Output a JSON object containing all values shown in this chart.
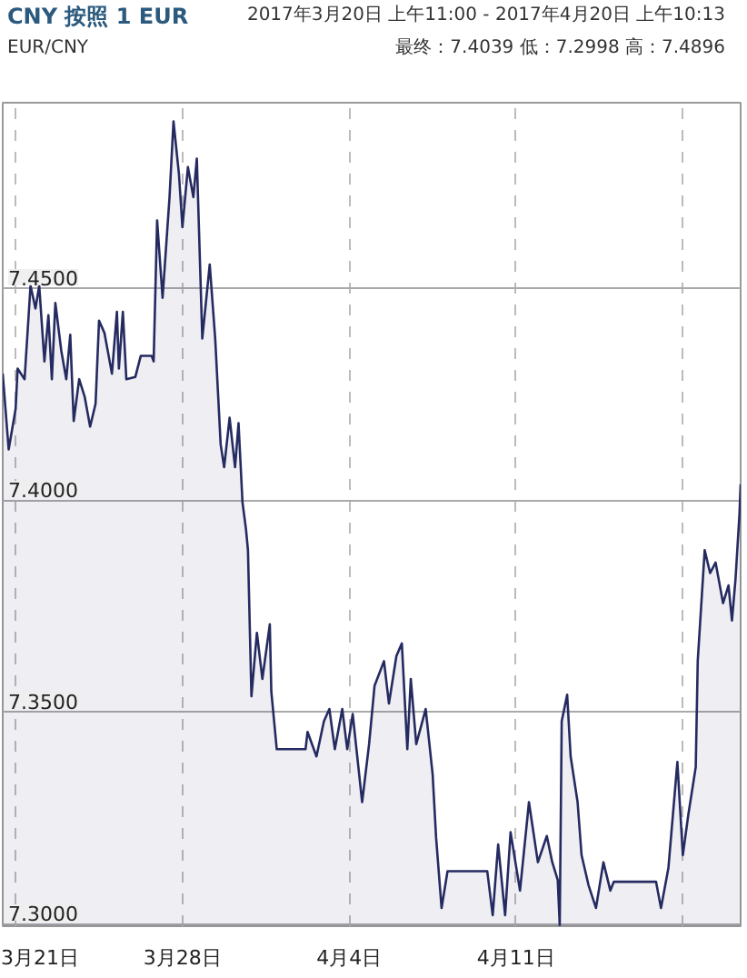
{
  "chart_data": {
    "type": "area",
    "title": "CNY 按照 1 EUR",
    "subtitle": "EUR/CNY",
    "annotations": [
      "2017年3月20日 上午11:00 - 2017年4月20日 上午10:13",
      "最终：7.4039 低：7.2998 高：7.4896"
    ],
    "x": [
      "2017-03-20T11:00",
      "2017-03-20T17:00",
      "2017-03-21T00:00",
      "2017-03-21T02:00",
      "2017-03-21T09:00",
      "2017-03-21T15:00",
      "2017-03-21T20:00",
      "2017-03-21T23:45",
      "2017-03-22T05:00",
      "2017-03-22T09:00",
      "2017-03-22T12:30",
      "2017-03-22T16:00",
      "2017-03-22T22:00",
      "2017-03-23T03:00",
      "2017-03-23T07:00",
      "2017-03-23T10:30",
      "2017-03-23T16:00",
      "2017-03-23T21:30",
      "2017-03-24T03:00",
      "2017-03-24T08:30",
      "2017-03-24T12:00",
      "2017-03-24T17:30",
      "2017-03-25T01:00",
      "2017-03-25T06:00",
      "2017-03-25T08:00",
      "2017-03-25T12:00",
      "2017-03-25T15:30",
      "2017-03-26T00:30",
      "2017-03-26T06:00",
      "2017-03-26T17:00",
      "2017-03-26T19:00",
      "2017-03-26T22:30",
      "2017-03-27T04:00",
      "2017-03-27T11:00",
      "2017-03-27T15:00",
      "2017-03-27T20:30",
      "2017-03-28T00:00",
      "2017-03-28T05:30",
      "2017-03-28T11:00",
      "2017-03-28T14:30",
      "2017-03-28T20:00",
      "2017-03-29T03:30",
      "2017-03-29T09:00",
      "2017-03-29T14:30",
      "2017-03-29T18:00",
      "2017-03-29T23:30",
      "2017-03-30T05:00",
      "2017-03-30T08:30",
      "2017-03-30T12:30",
      "2017-03-30T16:00",
      "2017-03-30T18:00",
      "2017-03-30T21:30",
      "2017-03-31T03:00",
      "2017-03-31T08:30",
      "2017-03-31T16:00",
      "2017-03-31T17:30",
      "2017-03-31T23:00",
      "2017-04-02T04:00",
      "2017-04-02T06:00",
      "2017-04-02T15:00",
      "2017-04-02T22:30",
      "2017-04-03T04:00",
      "2017-04-03T09:30",
      "2017-04-03T17:00",
      "2017-04-03T22:00",
      "2017-04-04T03:30",
      "2017-04-04T13:00",
      "2017-04-04T20:00",
      "2017-04-05T01:30",
      "2017-04-05T11:00",
      "2017-04-05T16:00",
      "2017-04-05T23:30",
      "2017-04-06T05:00",
      "2017-04-06T10:30",
      "2017-04-06T14:00",
      "2017-04-06T19:30",
      "2017-04-07T05:00",
      "2017-04-07T12:00",
      "2017-04-07T15:30",
      "2017-04-07T21:00",
      "2017-04-08T03:00",
      "2017-04-09T19:00",
      "2017-04-10T00:30",
      "2017-04-10T06:00",
      "2017-04-10T13:00",
      "2017-04-10T18:30",
      "2017-04-11T04:00",
      "2017-04-11T13:00",
      "2017-04-11T22:00",
      "2017-04-12T07:00",
      "2017-04-12T12:30",
      "2017-04-12T18:00",
      "2017-04-12T20:00",
      "2017-04-12T22:00",
      "2017-04-13T03:30",
      "2017-04-13T07:00",
      "2017-04-13T14:00",
      "2017-04-13T18:00",
      "2017-04-14T01:00",
      "2017-04-14T08:30",
      "2017-04-14T16:00",
      "2017-04-14T23:00",
      "2017-04-15T02:30",
      "2017-04-16T21:00",
      "2017-04-17T02:00",
      "2017-04-17T09:30",
      "2017-04-17T18:30",
      "2017-04-18T00:00",
      "2017-04-18T05:30",
      "2017-04-18T13:00",
      "2017-04-18T15:00",
      "2017-04-18T22:00",
      "2017-04-19T03:30",
      "2017-04-19T09:00",
      "2017-04-19T16:30",
      "2017-04-19T22:00",
      "2017-04-20T01:30",
      "2017-04-20T05:00",
      "2017-04-20T09:00",
      "2017-04-20T10:13"
    ],
    "series": [
      {
        "color": "#252b60",
        "values": [
          7.43,
          7.4121,
          7.4217,
          7.4312,
          7.4287,
          7.4508,
          7.4454,
          7.4508,
          7.4329,
          7.4438,
          7.4287,
          7.4467,
          7.4354,
          7.4287,
          7.4392,
          7.4188,
          7.4287,
          7.4246,
          7.4175,
          7.4229,
          7.4425,
          7.4396,
          7.43,
          7.4446,
          7.4312,
          7.4446,
          7.4287,
          7.4292,
          7.4342,
          7.4342,
          7.4329,
          7.4662,
          7.4479,
          7.4717,
          7.4896,
          7.4771,
          7.4646,
          7.4788,
          7.4717,
          7.4808,
          7.4383,
          7.4558,
          7.4383,
          7.4133,
          7.4079,
          7.4196,
          7.4079,
          7.4183,
          7.3996,
          7.3933,
          7.3883,
          7.3538,
          7.3688,
          7.3579,
          7.3708,
          7.355,
          7.3413,
          7.3413,
          7.3454,
          7.3396,
          7.3479,
          7.3508,
          7.3413,
          7.3508,
          7.3413,
          7.3496,
          7.3288,
          7.3425,
          7.3563,
          7.3621,
          7.3521,
          7.3633,
          7.3663,
          7.3413,
          7.3579,
          7.3425,
          7.3508,
          7.3354,
          7.3204,
          7.3038,
          7.3125,
          7.3125,
          7.3021,
          7.3188,
          7.3021,
          7.3217,
          7.3079,
          7.3288,
          7.3146,
          7.3208,
          7.3146,
          7.3104,
          7.2998,
          7.3479,
          7.3542,
          7.3396,
          7.3288,
          7.3163,
          7.3092,
          7.3038,
          7.3146,
          7.3079,
          7.31,
          7.31,
          7.3038,
          7.3133,
          7.3383,
          7.3163,
          7.3258,
          7.3371,
          7.3621,
          7.3883,
          7.3829,
          7.3854,
          7.3758,
          7.38,
          7.3717,
          7.3813,
          7.3967,
          7.4039
        ]
      }
    ],
    "xlim": [
      "2017-03-20T11:00",
      "2017-04-20T10:13"
    ],
    "ylim": [
      7.2995,
      7.494
    ],
    "xticks": [
      {
        "value": "2017-03-21",
        "label": "3月21日"
      },
      {
        "value": "2017-03-28",
        "label": "3月28日"
      },
      {
        "value": "2017-04-04",
        "label": "4月4日"
      },
      {
        "value": "2017-04-11",
        "label": "4月11日"
      },
      {
        "value": "2017-04-18",
        "label": null
      }
    ],
    "yticks": [
      {
        "value": 7.3,
        "label": "7.3000"
      },
      {
        "value": 7.35,
        "label": "7.3500"
      },
      {
        "value": 7.4,
        "label": "7.4000"
      },
      {
        "value": 7.45,
        "label": "7.4500"
      }
    ],
    "grid": true,
    "line_style": "solid",
    "marker": "none"
  }
}
